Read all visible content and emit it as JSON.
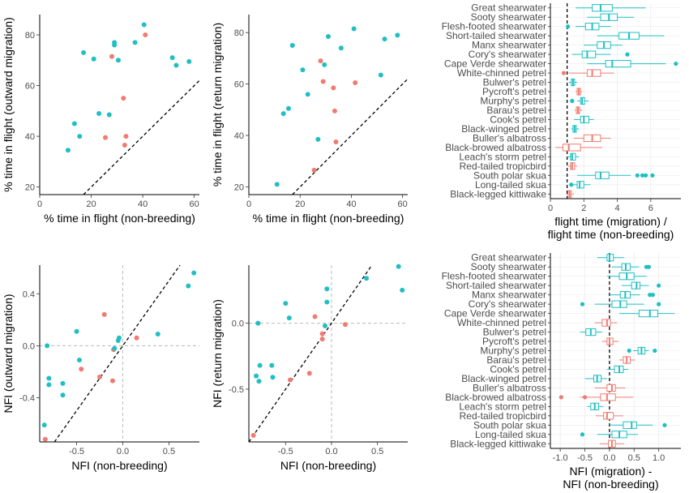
{
  "colors": {
    "teal": "#1fbfc4",
    "red": "#f07b70",
    "refline": "#000000",
    "zeroline": "#bbbbbb"
  },
  "chart_data": [
    {
      "type": "scatter",
      "xlabel": "% time in flight (non-breeding)",
      "ylabel": "% time in flight (outward migration)",
      "xlim": [
        0,
        62
      ],
      "ylim": [
        17,
        88
      ],
      "xticks": [
        0,
        20,
        40,
        60
      ],
      "yticks": [
        20,
        40,
        60,
        80
      ],
      "reference_line": "y = x (dashed)",
      "points": [
        {
          "x": 11,
          "y": 34.5,
          "c": "teal"
        },
        {
          "x": 13.5,
          "y": 45,
          "c": "teal"
        },
        {
          "x": 15.5,
          "y": 40,
          "c": "teal"
        },
        {
          "x": 17,
          "y": 73,
          "c": "teal"
        },
        {
          "x": 21,
          "y": 70.5,
          "c": "teal"
        },
        {
          "x": 23,
          "y": 49,
          "c": "teal"
        },
        {
          "x": 25.5,
          "y": 39.5,
          "c": "red"
        },
        {
          "x": 27,
          "y": 48.5,
          "c": "teal"
        },
        {
          "x": 28,
          "y": 71.5,
          "c": "red"
        },
        {
          "x": 29,
          "y": 77,
          "c": "teal"
        },
        {
          "x": 29,
          "y": 76,
          "c": "teal"
        },
        {
          "x": 30.5,
          "y": 70,
          "c": "teal"
        },
        {
          "x": 32.5,
          "y": 55,
          "c": "red"
        },
        {
          "x": 33,
          "y": 36.5,
          "c": "red"
        },
        {
          "x": 33.5,
          "y": 40,
          "c": "red"
        },
        {
          "x": 37,
          "y": 77,
          "c": "teal"
        },
        {
          "x": 40.5,
          "y": 84,
          "c": "teal"
        },
        {
          "x": 41,
          "y": 80,
          "c": "red"
        },
        {
          "x": 51.5,
          "y": 71,
          "c": "teal"
        },
        {
          "x": 53,
          "y": 68,
          "c": "teal"
        },
        {
          "x": 58,
          "y": 69.5,
          "c": "teal"
        }
      ]
    },
    {
      "type": "scatter",
      "xlabel": "% time in flight (non-breeding)",
      "ylabel": "% time in flight (return migration)",
      "xlim": [
        0,
        62
      ],
      "ylim": [
        17,
        87
      ],
      "xticks": [
        0,
        20,
        40,
        60
      ],
      "yticks": [
        20,
        40,
        60,
        80
      ],
      "reference_line": "y = x (dashed)",
      "points": [
        {
          "x": 11,
          "y": 21,
          "c": "teal"
        },
        {
          "x": 13.5,
          "y": 48.5,
          "c": "teal"
        },
        {
          "x": 15.5,
          "y": 50.5,
          "c": "teal"
        },
        {
          "x": 17,
          "y": 75,
          "c": "teal"
        },
        {
          "x": 21,
          "y": 65.5,
          "c": "teal"
        },
        {
          "x": 23,
          "y": 56,
          "c": "teal"
        },
        {
          "x": 25.5,
          "y": 26.5,
          "c": "red"
        },
        {
          "x": 27,
          "y": 38.5,
          "c": "teal"
        },
        {
          "x": 28,
          "y": 69,
          "c": "red"
        },
        {
          "x": 29,
          "y": 61,
          "c": "red"
        },
        {
          "x": 29.5,
          "y": 67.5,
          "c": "teal"
        },
        {
          "x": 31,
          "y": 78.5,
          "c": "teal"
        },
        {
          "x": 33,
          "y": 58.5,
          "c": "red"
        },
        {
          "x": 33.5,
          "y": 49.5,
          "c": "red"
        },
        {
          "x": 34,
          "y": 37.5,
          "c": "red"
        },
        {
          "x": 36,
          "y": 74,
          "c": "teal"
        },
        {
          "x": 41,
          "y": 81.5,
          "c": "teal"
        },
        {
          "x": 41.5,
          "y": 60.5,
          "c": "red"
        },
        {
          "x": 51.5,
          "y": 63.5,
          "c": "teal"
        },
        {
          "x": 53,
          "y": 77.5,
          "c": "teal"
        },
        {
          "x": 58,
          "y": 79,
          "c": "teal"
        }
      ]
    },
    {
      "type": "scatter",
      "xlabel": "NFI (non-breeding)",
      "ylabel": "NFI (outward migration)",
      "xlim": [
        -0.9,
        0.83
      ],
      "ylim": [
        -0.74,
        0.62
      ],
      "xticks": [
        -0.5,
        0.0,
        0.5
      ],
      "yticks": [
        -0.4,
        0.0,
        0.4
      ],
      "xticklabels": [
        "-0.5",
        "0.0",
        "0.5"
      ],
      "yticklabels": [
        "-0.4",
        "0.0",
        "0.4"
      ],
      "reference_line": "y = x (dashed); zero lines grey dashed",
      "points": [
        {
          "x": -0.85,
          "y": -0.61,
          "c": "teal"
        },
        {
          "x": -0.84,
          "y": -0.72,
          "c": "red"
        },
        {
          "x": -0.82,
          "y": 0.0,
          "c": "teal"
        },
        {
          "x": -0.8,
          "y": -0.25,
          "c": "teal"
        },
        {
          "x": -0.8,
          "y": -0.3,
          "c": "teal"
        },
        {
          "x": -0.65,
          "y": -0.29,
          "c": "teal"
        },
        {
          "x": -0.65,
          "y": -0.38,
          "c": "teal"
        },
        {
          "x": -0.5,
          "y": 0.11,
          "c": "teal"
        },
        {
          "x": -0.47,
          "y": -0.11,
          "c": "teal"
        },
        {
          "x": -0.45,
          "y": -0.18,
          "c": "red"
        },
        {
          "x": -0.25,
          "y": -0.24,
          "c": "red"
        },
        {
          "x": -0.2,
          "y": 0.24,
          "c": "red"
        },
        {
          "x": -0.11,
          "y": -0.27,
          "c": "red"
        },
        {
          "x": -0.1,
          "y": -0.03,
          "c": "red"
        },
        {
          "x": -0.09,
          "y": -0.02,
          "c": "teal"
        },
        {
          "x": -0.05,
          "y": 0.04,
          "c": "teal"
        },
        {
          "x": -0.04,
          "y": 0.06,
          "c": "teal"
        },
        {
          "x": 0.15,
          "y": 0.06,
          "c": "red"
        },
        {
          "x": 0.38,
          "y": 0.09,
          "c": "teal"
        },
        {
          "x": 0.71,
          "y": 0.46,
          "c": "teal"
        },
        {
          "x": 0.77,
          "y": 0.56,
          "c": "teal"
        }
      ]
    },
    {
      "type": "scatter",
      "xlabel": "NFI (non-breeding)",
      "ylabel": "NFI (return migration)",
      "xlim": [
        -0.9,
        0.83
      ],
      "ylim": [
        -0.9,
        0.44
      ],
      "xticks": [
        -0.5,
        0.0,
        0.5
      ],
      "yticks": [
        -0.5,
        0.0
      ],
      "xticklabels": [
        "-0.5",
        "0.0",
        "0.5"
      ],
      "yticklabels": [
        "-0.5",
        "0.0"
      ],
      "reference_line": "y = x (dashed); zero lines grey dashed",
      "points": [
        {
          "x": -0.85,
          "y": -0.85,
          "c": "red"
        },
        {
          "x": -0.82,
          "y": -0.4,
          "c": "teal"
        },
        {
          "x": -0.79,
          "y": -0.44,
          "c": "teal"
        },
        {
          "x": -0.78,
          "y": -0.32,
          "c": "teal"
        },
        {
          "x": -0.8,
          "y": 0.0,
          "c": "teal"
        },
        {
          "x": -0.65,
          "y": -0.32,
          "c": "teal"
        },
        {
          "x": -0.64,
          "y": -0.41,
          "c": "teal"
        },
        {
          "x": -0.5,
          "y": 0.15,
          "c": "teal"
        },
        {
          "x": -0.46,
          "y": 0.04,
          "c": "teal"
        },
        {
          "x": -0.45,
          "y": -0.43,
          "c": "red"
        },
        {
          "x": -0.24,
          "y": -0.38,
          "c": "red"
        },
        {
          "x": -0.18,
          "y": 0.05,
          "c": "red"
        },
        {
          "x": -0.1,
          "y": -0.08,
          "c": "red"
        },
        {
          "x": -0.1,
          "y": -0.12,
          "c": "red"
        },
        {
          "x": -0.05,
          "y": 0.26,
          "c": "teal"
        },
        {
          "x": -0.05,
          "y": 0.16,
          "c": "teal"
        },
        {
          "x": -0.07,
          "y": -0.02,
          "c": "teal"
        },
        {
          "x": 0.15,
          "y": -0.01,
          "c": "red"
        },
        {
          "x": 0.38,
          "y": 0.34,
          "c": "teal"
        },
        {
          "x": 0.73,
          "y": 0.43,
          "c": "teal"
        },
        {
          "x": 0.77,
          "y": 0.25,
          "c": "teal"
        }
      ]
    },
    {
      "type": "boxplot",
      "orientation": "horizontal",
      "xlabel": "flight time (migration) /\nflight time (non-breeding)",
      "xlim": [
        0,
        7.8
      ],
      "xticks": [
        0,
        2,
        4,
        6
      ],
      "reference_x": 1,
      "categories": [
        "Great shearwater",
        "Sooty shearwater",
        "Flesh-footed shearwater",
        "Short-tailed shearwater",
        "Manx shearwater",
        "Cory's shearwater",
        "Cape Verde shearwater",
        "White-chinned petrel",
        "Bulwer's petrel",
        "Pycroft's petrel",
        "Murphy's petrel",
        "Barau's petrel",
        "Cook's petrel",
        "Black-winged petrel",
        "Buller's albatross",
        "Black-browed albatross",
        "Leach's storm petrel",
        "Red-tailed tropicbird",
        "South polar skua",
        "Long-tailed skua",
        "Black-legged kittiwake"
      ],
      "boxes": [
        {
          "c": "teal",
          "wlo": 1.5,
          "q1": 2.5,
          "med": 3.0,
          "q3": 3.7,
          "whi": 5.7,
          "out": []
        },
        {
          "c": "teal",
          "wlo": 2.2,
          "q1": 3.0,
          "med": 3.5,
          "q3": 4.0,
          "whi": 5.0,
          "out": []
        },
        {
          "c": "teal",
          "wlo": 1.5,
          "q1": 2.1,
          "med": 2.5,
          "q3": 2.9,
          "whi": 3.6,
          "out": [
            1.05
          ]
        },
        {
          "c": "teal",
          "wlo": 2.8,
          "q1": 4.1,
          "med": 4.7,
          "q3": 5.3,
          "whi": 6.8,
          "out": []
        },
        {
          "c": "teal",
          "wlo": 2.0,
          "q1": 2.8,
          "med": 3.2,
          "q3": 3.6,
          "whi": 4.3,
          "out": []
        },
        {
          "c": "teal",
          "wlo": 1.3,
          "q1": 1.9,
          "med": 2.2,
          "q3": 2.7,
          "whi": 3.6,
          "out": [
            4.6
          ]
        },
        {
          "c": "teal",
          "wlo": 2.2,
          "q1": 3.3,
          "med": 3.7,
          "q3": 4.8,
          "whi": 6.9,
          "out": [
            7.5
          ]
        },
        {
          "c": "red",
          "wlo": 1.1,
          "q1": 2.2,
          "med": 2.5,
          "q3": 3.0,
          "whi": 3.8,
          "out": [
            0.8
          ]
        },
        {
          "c": "teal",
          "wlo": 1.1,
          "q1": 1.25,
          "med": 1.35,
          "q3": 1.45,
          "whi": 1.6,
          "out": []
        },
        {
          "c": "red",
          "wlo": 1.5,
          "q1": 1.6,
          "med": 1.7,
          "q3": 1.8,
          "whi": 1.9,
          "out": []
        },
        {
          "c": "teal",
          "wlo": 1.6,
          "q1": 1.8,
          "med": 1.9,
          "q3": 2.05,
          "whi": 2.3,
          "out": [
            1.3
          ]
        },
        {
          "c": "red",
          "wlo": 1.45,
          "q1": 1.55,
          "med": 1.65,
          "q3": 1.75,
          "whi": 1.9,
          "out": []
        },
        {
          "c": "teal",
          "wlo": 1.4,
          "q1": 1.8,
          "med": 2.0,
          "q3": 2.3,
          "whi": 2.6,
          "out": []
        },
        {
          "c": "teal",
          "wlo": 1.25,
          "q1": 1.35,
          "med": 1.45,
          "q3": 1.55,
          "whi": 1.7,
          "out": []
        },
        {
          "c": "red",
          "wlo": 1.4,
          "q1": 2.0,
          "med": 2.5,
          "q3": 3.0,
          "whi": 3.6,
          "out": []
        },
        {
          "c": "red",
          "wlo": 0.3,
          "q1": 0.75,
          "med": 1.1,
          "q3": 1.8,
          "whi": 3.1,
          "out": []
        },
        {
          "c": "teal",
          "wlo": 1.0,
          "q1": 1.2,
          "med": 1.3,
          "q3": 1.5,
          "whi": 1.7,
          "out": []
        },
        {
          "c": "red",
          "wlo": 1.05,
          "q1": 1.2,
          "med": 1.3,
          "q3": 1.45,
          "whi": 1.6,
          "out": []
        },
        {
          "c": "teal",
          "wlo": 1.6,
          "q1": 2.7,
          "med": 3.0,
          "q3": 3.5,
          "whi": 4.8,
          "out": [
            5.2,
            5.5,
            5.7,
            6.1
          ]
        },
        {
          "c": "teal",
          "wlo": 1.2,
          "q1": 1.6,
          "med": 1.75,
          "q3": 2.0,
          "whi": 2.4,
          "out": [
            1.25
          ]
        },
        {
          "c": "red",
          "wlo": 0.95,
          "q1": 1.05,
          "med": 1.15,
          "q3": 1.25,
          "whi": 1.4,
          "out": []
        }
      ]
    },
    {
      "type": "boxplot",
      "orientation": "horizontal",
      "xlabel": "NFI (migration) -\nNFI (non-breeding)",
      "xlim": [
        -1.2,
        1.45
      ],
      "xticks": [
        -1.0,
        -0.5,
        0.0,
        0.5,
        1.0
      ],
      "xticklabels": [
        "-1.0",
        "-0.5",
        "0.0",
        "0.5",
        "1.0"
      ],
      "reference_x": 0,
      "categories": [
        "Great shearwater",
        "Sooty shearwater",
        "Flesh-footed shearwater",
        "Short-tailed shearwater",
        "Manx shearwater",
        "Cory's shearwater",
        "Cape Verde shearwater",
        "White-chinned petrel",
        "Bulwer's petrel",
        "Pycroft's petrel",
        "Murphy's petrel",
        "Barau's petrel",
        "Cook's petrel",
        "Black-winged petrel",
        "Buller's albatross",
        "Black-browed albatross",
        "Leach's storm petrel",
        "Red-tailed tropicbird",
        "South polar skua",
        "Long-tailed skua",
        "Black-legged kittiwake"
      ],
      "boxes": [
        {
          "c": "teal",
          "wlo": -0.25,
          "q1": -0.05,
          "med": 0.0,
          "q3": 0.08,
          "whi": 0.3,
          "out": []
        },
        {
          "c": "teal",
          "wlo": 0.05,
          "q1": 0.25,
          "med": 0.33,
          "q3": 0.42,
          "whi": 0.6,
          "out": [
            0.75,
            0.8
          ]
        },
        {
          "c": "teal",
          "wlo": -0.05,
          "q1": 0.2,
          "med": 0.35,
          "q3": 0.5,
          "whi": 0.75,
          "out": []
        },
        {
          "c": "teal",
          "wlo": 0.25,
          "q1": 0.45,
          "med": 0.55,
          "q3": 0.62,
          "whi": 0.8,
          "out": [
            1.0
          ]
        },
        {
          "c": "teal",
          "wlo": 0.0,
          "q1": 0.22,
          "med": 0.32,
          "q3": 0.42,
          "whi": 0.62,
          "out": [
            0.82,
            0.88
          ]
        },
        {
          "c": "teal",
          "wlo": -0.3,
          "q1": 0.05,
          "med": 0.22,
          "q3": 0.35,
          "whi": 0.7,
          "out": [
            -0.55,
            1.0
          ]
        },
        {
          "c": "teal",
          "wlo": 0.2,
          "q1": 0.6,
          "med": 0.82,
          "q3": 0.98,
          "whi": 1.32,
          "out": []
        },
        {
          "c": "red",
          "wlo": -0.3,
          "q1": -0.15,
          "med": -0.05,
          "q3": 0.02,
          "whi": 0.15,
          "out": []
        },
        {
          "c": "teal",
          "wlo": -0.6,
          "q1": -0.48,
          "med": -0.38,
          "q3": -0.28,
          "whi": -0.15,
          "out": []
        },
        {
          "c": "red",
          "wlo": -0.15,
          "q1": -0.05,
          "med": 0.0,
          "q3": 0.07,
          "whi": 0.18,
          "out": []
        },
        {
          "c": "teal",
          "wlo": 0.48,
          "q1": 0.58,
          "med": 0.65,
          "q3": 0.72,
          "whi": 0.8,
          "out": [
            0.4,
            0.92
          ]
        },
        {
          "c": "red",
          "wlo": 0.2,
          "q1": 0.28,
          "med": 0.35,
          "q3": 0.42,
          "whi": 0.52,
          "out": []
        },
        {
          "c": "teal",
          "wlo": -0.05,
          "q1": 0.1,
          "med": 0.2,
          "q3": 0.28,
          "whi": 0.38,
          "out": []
        },
        {
          "c": "teal",
          "wlo": -0.5,
          "q1": -0.32,
          "med": -0.25,
          "q3": -0.17,
          "whi": -0.05,
          "out": []
        },
        {
          "c": "red",
          "wlo": -0.3,
          "q1": -0.05,
          "med": 0.05,
          "q3": 0.12,
          "whi": 0.32,
          "out": []
        },
        {
          "c": "red",
          "wlo": -0.6,
          "q1": -0.18,
          "med": -0.05,
          "q3": 0.12,
          "whi": 0.48,
          "out": [
            -0.98,
            -0.5
          ]
        },
        {
          "c": "teal",
          "wlo": -0.45,
          "q1": -0.38,
          "med": -0.3,
          "q3": -0.22,
          "whi": -0.12,
          "out": []
        },
        {
          "c": "red",
          "wlo": -0.28,
          "q1": -0.12,
          "med": -0.05,
          "q3": 0.08,
          "whi": 0.28,
          "out": []
        },
        {
          "c": "teal",
          "wlo": 0.0,
          "q1": 0.28,
          "med": 0.45,
          "q3": 0.55,
          "whi": 0.88,
          "out": [
            1.12
          ]
        },
        {
          "c": "teal",
          "wlo": -0.25,
          "q1": 0.05,
          "med": 0.2,
          "q3": 0.35,
          "whi": 0.58,
          "out": [
            -0.55
          ]
        },
        {
          "c": "red",
          "wlo": -0.2,
          "q1": -0.02,
          "med": 0.05,
          "q3": 0.12,
          "whi": 0.3,
          "out": []
        }
      ]
    }
  ]
}
